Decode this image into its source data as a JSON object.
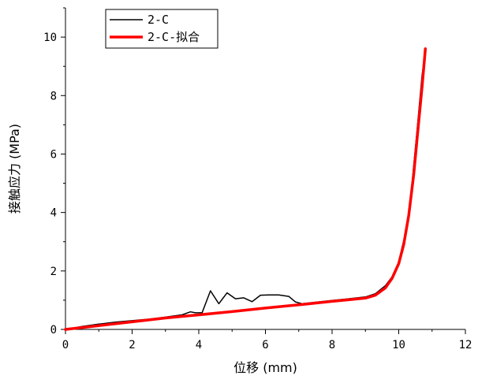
{
  "chart_data": {
    "type": "line",
    "xlabel": "位移 (mm)",
    "ylabel": "接触应力 (MPa)",
    "xlim": [
      0,
      12
    ],
    "ylim": [
      0,
      11
    ],
    "x_ticks": [
      0,
      2,
      4,
      6,
      8,
      10,
      12
    ],
    "y_ticks": [
      0,
      2,
      4,
      6,
      8,
      10
    ],
    "grid": false,
    "legend_position": "top-left",
    "series": [
      {
        "name": "2-C",
        "color": "#000000",
        "x": [
          0,
          0.5,
          1.0,
          1.5,
          2.0,
          2.5,
          3.0,
          3.5,
          3.75,
          3.9,
          4.1,
          4.35,
          4.6,
          4.85,
          5.1,
          5.35,
          5.6,
          5.85,
          6.1,
          6.4,
          6.7,
          6.9,
          7.1,
          7.5,
          8.0,
          8.5,
          9.0,
          9.3,
          9.6,
          9.8,
          10.0,
          10.1,
          10.25,
          10.4,
          10.55,
          10.7,
          10.8
        ],
        "y": [
          0,
          0.1,
          0.18,
          0.25,
          0.3,
          0.35,
          0.42,
          0.5,
          0.6,
          0.57,
          0.57,
          1.32,
          0.88,
          1.25,
          1.05,
          1.08,
          0.95,
          1.17,
          1.18,
          1.18,
          1.13,
          0.94,
          0.88,
          0.93,
          0.99,
          1.05,
          1.11,
          1.22,
          1.5,
          1.8,
          2.3,
          2.8,
          3.5,
          5.0,
          6.8,
          8.7,
          9.5
        ]
      },
      {
        "name": "2-C-拟合",
        "color": "#ff0000",
        "x": [
          0,
          1,
          2,
          3,
          4,
          5,
          6,
          7,
          8,
          9,
          9.3,
          9.6,
          9.8,
          10.0,
          10.15,
          10.3,
          10.45,
          10.6,
          10.7,
          10.8
        ],
        "y": [
          0,
          0.13,
          0.26,
          0.39,
          0.5,
          0.61,
          0.73,
          0.84,
          0.96,
          1.07,
          1.17,
          1.42,
          1.75,
          2.25,
          2.9,
          3.9,
          5.3,
          7.1,
          8.3,
          9.6
        ]
      }
    ]
  }
}
